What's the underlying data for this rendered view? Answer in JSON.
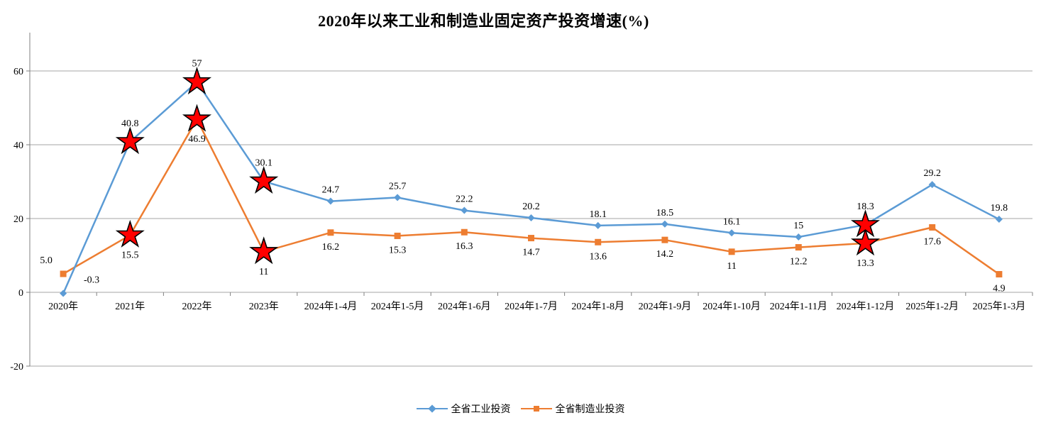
{
  "title": "2020年以来工业和制造业固定资产投资增速(%)",
  "chart_data": {
    "type": "line",
    "title": "2020年以来工业和制造业固定资产投资增速(%)",
    "categories": [
      "2020年",
      "2021年",
      "2022年",
      "2023年",
      "2024年1-4月",
      "2024年1-5月",
      "2024年1-6月",
      "2024年1-7月",
      "2024年1-8月",
      "2024年1-9月",
      "2024年1-10月",
      "2024年1-11月",
      "2024年1-12月",
      "2025年1-2月",
      "2025年1-3月"
    ],
    "series": [
      {
        "name": "全省工业投资",
        "color": "#5B9BD5",
        "marker": "diamond",
        "values": [
          -0.3,
          40.8,
          57,
          30.1,
          24.7,
          25.7,
          22.2,
          20.2,
          18.1,
          18.5,
          16.1,
          15,
          18.3,
          29.2,
          19.8
        ],
        "labels": [
          "-0.3",
          "40.8",
          "57",
          "30.1",
          "24.7",
          "25.7",
          "22.2",
          "20.2",
          "18.1",
          "18.5",
          "16.1",
          "15",
          "18.3",
          "29.2",
          "19.8"
        ]
      },
      {
        "name": "全省制造业投资",
        "color": "#ED7D31",
        "marker": "square",
        "values": [
          5.0,
          15.5,
          46.9,
          11,
          16.2,
          15.3,
          16.3,
          14.7,
          13.6,
          14.2,
          11,
          12.2,
          13.3,
          17.6,
          4.9
        ],
        "labels": [
          "5.0",
          "15.5",
          "46.9",
          "11",
          "16.2",
          "15.3",
          "16.3",
          "14.7",
          "13.6",
          "14.2",
          "11",
          "12.2",
          "13.3",
          "17.6",
          "4.9"
        ]
      }
    ],
    "starred_category_indices": [
      1,
      2,
      3,
      12
    ],
    "star_fill": "#FF0000",
    "star_stroke": "#000000",
    "y_axis": {
      "ticks": [
        -20,
        0,
        20,
        40,
        60
      ],
      "tick_labels": [
        "-20",
        "0",
        "20",
        "40",
        "60"
      ],
      "min": -20,
      "max": 70
    },
    "grid": true,
    "grid_color": "#A6A6A6",
    "legend_position": "bottom"
  }
}
